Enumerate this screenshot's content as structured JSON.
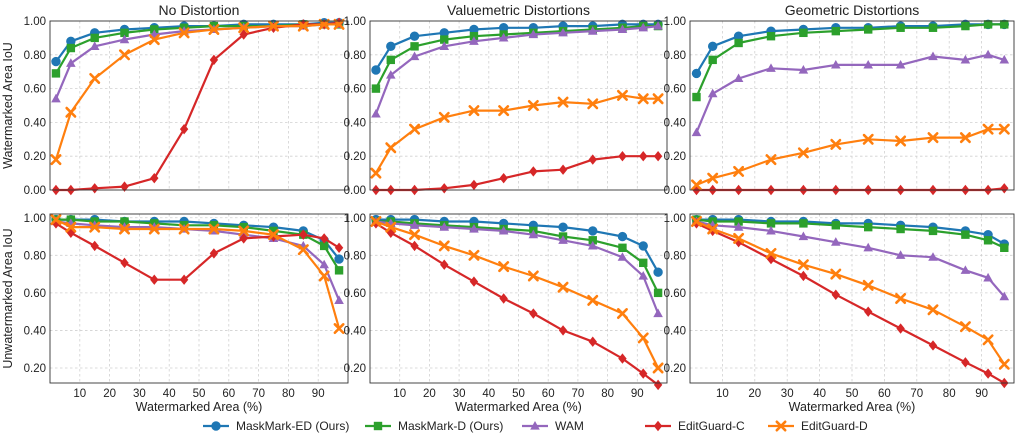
{
  "figure": {
    "legend_position": "bottom-center",
    "grid": true,
    "x_axis_label": "Watermarked Area (%)"
  },
  "series_styles": [
    {
      "name": "MaskMark-ED (Ours)",
      "color": "#1f77b4",
      "marker": "circle"
    },
    {
      "name": "MaskMark-D (Ours)",
      "color": "#2ca02c",
      "marker": "square"
    },
    {
      "name": "WAM",
      "color": "#9467bd",
      "marker": "triangle"
    },
    {
      "name": "EditGuard-C",
      "color": "#d62728",
      "marker": "diamond"
    },
    {
      "name": "EditGuard-D",
      "color": "#ff7f0e",
      "marker": "x"
    }
  ],
  "chart_data": [
    {
      "type": "line",
      "title": "No Distortion",
      "xlabel": "",
      "ylabel": "Watermarked Area IoU",
      "row": 0,
      "col": 0,
      "ylim": [
        0,
        1
      ],
      "yticks": [
        "0.00",
        "0.20",
        "0.40",
        "0.60",
        "0.80",
        "1.00"
      ],
      "xlim": [
        0,
        100
      ],
      "xticks": [],
      "x": [
        2,
        7,
        15,
        25,
        35,
        45,
        55,
        65,
        75,
        85,
        92,
        97
      ],
      "series": [
        {
          "name": "MaskMark-ED (Ours)",
          "values": [
            0.76,
            0.88,
            0.93,
            0.95,
            0.96,
            0.97,
            0.97,
            0.98,
            0.98,
            0.98,
            0.99,
            0.99
          ]
        },
        {
          "name": "MaskMark-D (Ours)",
          "values": [
            0.69,
            0.84,
            0.9,
            0.93,
            0.95,
            0.96,
            0.97,
            0.97,
            0.97,
            0.98,
            0.98,
            0.98
          ]
        },
        {
          "name": "WAM",
          "values": [
            0.54,
            0.75,
            0.85,
            0.89,
            0.92,
            0.94,
            0.95,
            0.96,
            0.97,
            0.97,
            0.98,
            0.98
          ]
        },
        {
          "name": "EditGuard-C",
          "values": [
            0.0,
            0.0,
            0.01,
            0.02,
            0.07,
            0.36,
            0.77,
            0.92,
            0.96,
            0.98,
            0.98,
            0.99
          ]
        },
        {
          "name": "EditGuard-D",
          "values": [
            0.18,
            0.46,
            0.66,
            0.8,
            0.89,
            0.93,
            0.95,
            0.96,
            0.97,
            0.97,
            0.98,
            0.98
          ]
        }
      ]
    },
    {
      "type": "line",
      "title": "Valuemetric Distortions",
      "xlabel": "",
      "ylabel": "",
      "row": 0,
      "col": 1,
      "ylim": [
        0,
        1
      ],
      "yticks": [
        "0.00",
        "0.20",
        "0.40",
        "0.60",
        "0.80",
        "1.00"
      ],
      "xlim": [
        0,
        100
      ],
      "xticks": [],
      "x": [
        2,
        7,
        15,
        25,
        35,
        45,
        55,
        65,
        75,
        85,
        92,
        97
      ],
      "series": [
        {
          "name": "MaskMark-ED (Ours)",
          "values": [
            0.71,
            0.85,
            0.91,
            0.93,
            0.95,
            0.96,
            0.96,
            0.97,
            0.97,
            0.98,
            0.98,
            0.98
          ]
        },
        {
          "name": "MaskMark-D (Ours)",
          "values": [
            0.6,
            0.77,
            0.85,
            0.89,
            0.91,
            0.92,
            0.93,
            0.94,
            0.95,
            0.96,
            0.97,
            0.97
          ]
        },
        {
          "name": "WAM",
          "values": [
            0.45,
            0.68,
            0.79,
            0.85,
            0.88,
            0.9,
            0.92,
            0.93,
            0.94,
            0.95,
            0.96,
            0.97
          ]
        },
        {
          "name": "EditGuard-C",
          "values": [
            0.0,
            0.0,
            0.0,
            0.01,
            0.03,
            0.07,
            0.11,
            0.12,
            0.18,
            0.2,
            0.2,
            0.2
          ]
        },
        {
          "name": "EditGuard-D",
          "values": [
            0.1,
            0.25,
            0.36,
            0.43,
            0.47,
            0.47,
            0.5,
            0.52,
            0.51,
            0.56,
            0.54,
            0.54
          ]
        }
      ]
    },
    {
      "type": "line",
      "title": "Geometric Distortions",
      "xlabel": "",
      "ylabel": "",
      "row": 0,
      "col": 2,
      "ylim": [
        0,
        1
      ],
      "yticks": [
        "0.00",
        "0.20",
        "0.40",
        "0.60",
        "0.80",
        "1.00"
      ],
      "xlim": [
        0,
        100
      ],
      "xticks": [],
      "x": [
        2,
        7,
        15,
        25,
        35,
        45,
        55,
        65,
        75,
        85,
        92,
        97
      ],
      "series": [
        {
          "name": "MaskMark-ED (Ours)",
          "values": [
            0.69,
            0.85,
            0.91,
            0.94,
            0.95,
            0.96,
            0.96,
            0.97,
            0.97,
            0.98,
            0.98,
            0.98
          ]
        },
        {
          "name": "MaskMark-D (Ours)",
          "values": [
            0.55,
            0.77,
            0.87,
            0.91,
            0.93,
            0.94,
            0.95,
            0.96,
            0.96,
            0.97,
            0.98,
            0.98
          ]
        },
        {
          "name": "WAM",
          "values": [
            0.34,
            0.57,
            0.66,
            0.72,
            0.71,
            0.74,
            0.74,
            0.74,
            0.79,
            0.77,
            0.8,
            0.77
          ]
        },
        {
          "name": "EditGuard-C",
          "values": [
            0.0,
            0.0,
            0.0,
            0.0,
            0.0,
            0.0,
            0.0,
            0.0,
            0.0,
            0.0,
            0.0,
            0.01
          ]
        },
        {
          "name": "EditGuard-D",
          "values": [
            0.03,
            0.07,
            0.11,
            0.18,
            0.22,
            0.27,
            0.3,
            0.29,
            0.31,
            0.31,
            0.36,
            0.36
          ]
        }
      ]
    },
    {
      "type": "line",
      "title": "",
      "xlabel": "Watermarked Area (%)",
      "ylabel": "Unwatermarked Area IoU",
      "row": 1,
      "col": 0,
      "ylim": [
        0.12,
        1.02
      ],
      "yticks": [
        "0.20",
        "0.40",
        "0.60",
        "0.80",
        "1.00"
      ],
      "xlim": [
        0,
        100
      ],
      "xticks": [
        "10",
        "20",
        "30",
        "40",
        "50",
        "60",
        "70",
        "80",
        "90"
      ],
      "x": [
        2,
        7,
        15,
        25,
        35,
        45,
        55,
        65,
        75,
        85,
        92,
        97
      ],
      "series": [
        {
          "name": "MaskMark-ED (Ours)",
          "values": [
            0.99,
            0.99,
            0.99,
            0.98,
            0.98,
            0.98,
            0.97,
            0.96,
            0.95,
            0.93,
            0.88,
            0.78
          ]
        },
        {
          "name": "MaskMark-D (Ours)",
          "values": [
            0.99,
            0.99,
            0.98,
            0.98,
            0.97,
            0.96,
            0.96,
            0.95,
            0.93,
            0.91,
            0.85,
            0.72
          ]
        },
        {
          "name": "WAM",
          "values": [
            0.98,
            0.97,
            0.96,
            0.95,
            0.95,
            0.94,
            0.93,
            0.91,
            0.89,
            0.85,
            0.75,
            0.56
          ]
        },
        {
          "name": "EditGuard-C",
          "values": [
            0.97,
            0.92,
            0.85,
            0.76,
            0.67,
            0.67,
            0.81,
            0.89,
            0.9,
            0.91,
            0.89,
            0.84
          ]
        },
        {
          "name": "EditGuard-D",
          "values": [
            0.99,
            0.95,
            0.95,
            0.94,
            0.94,
            0.94,
            0.94,
            0.93,
            0.91,
            0.83,
            0.69,
            0.41
          ]
        }
      ]
    },
    {
      "type": "line",
      "title": "",
      "xlabel": "Watermarked Area (%)",
      "ylabel": "",
      "row": 1,
      "col": 1,
      "ylim": [
        0.12,
        1.02
      ],
      "yticks": [
        "0.20",
        "0.40",
        "0.60",
        "0.80",
        "1.00"
      ],
      "xlim": [
        0,
        100
      ],
      "xticks": [
        "10",
        "20",
        "30",
        "40",
        "50",
        "60",
        "70",
        "80",
        "90"
      ],
      "x": [
        2,
        7,
        15,
        25,
        35,
        45,
        55,
        65,
        75,
        85,
        92,
        97
      ],
      "series": [
        {
          "name": "MaskMark-ED (Ours)",
          "values": [
            0.99,
            0.99,
            0.99,
            0.98,
            0.98,
            0.97,
            0.96,
            0.95,
            0.93,
            0.9,
            0.85,
            0.71
          ]
        },
        {
          "name": "MaskMark-D (Ours)",
          "values": [
            0.98,
            0.98,
            0.97,
            0.96,
            0.95,
            0.94,
            0.93,
            0.9,
            0.88,
            0.84,
            0.76,
            0.6
          ]
        },
        {
          "name": "WAM",
          "values": [
            0.98,
            0.97,
            0.96,
            0.95,
            0.94,
            0.93,
            0.91,
            0.88,
            0.85,
            0.79,
            0.69,
            0.49
          ]
        },
        {
          "name": "EditGuard-C",
          "values": [
            0.97,
            0.92,
            0.85,
            0.75,
            0.66,
            0.57,
            0.49,
            0.4,
            0.34,
            0.25,
            0.17,
            0.11
          ]
        },
        {
          "name": "EditGuard-D",
          "values": [
            0.98,
            0.95,
            0.91,
            0.85,
            0.8,
            0.74,
            0.69,
            0.63,
            0.56,
            0.49,
            0.36,
            0.2
          ]
        }
      ]
    },
    {
      "type": "line",
      "title": "",
      "xlabel": "Watermarked Area (%)",
      "ylabel": "",
      "row": 1,
      "col": 2,
      "ylim": [
        0.12,
        1.02
      ],
      "yticks": [
        "0.20",
        "0.40",
        "0.60",
        "0.80",
        "1.00"
      ],
      "xlim": [
        0,
        100
      ],
      "xticks": [
        "10",
        "20",
        "30",
        "40",
        "50",
        "60",
        "70",
        "80",
        "90"
      ],
      "x": [
        2,
        7,
        15,
        25,
        35,
        45,
        55,
        65,
        75,
        85,
        92,
        97
      ],
      "series": [
        {
          "name": "MaskMark-ED (Ours)",
          "values": [
            0.99,
            0.99,
            0.99,
            0.98,
            0.98,
            0.97,
            0.97,
            0.96,
            0.95,
            0.93,
            0.91,
            0.86
          ]
        },
        {
          "name": "MaskMark-D (Ours)",
          "values": [
            0.99,
            0.98,
            0.98,
            0.97,
            0.97,
            0.96,
            0.95,
            0.94,
            0.93,
            0.91,
            0.88,
            0.84
          ]
        },
        {
          "name": "WAM",
          "values": [
            0.98,
            0.96,
            0.95,
            0.93,
            0.9,
            0.87,
            0.84,
            0.8,
            0.79,
            0.72,
            0.68,
            0.58
          ]
        },
        {
          "name": "EditGuard-C",
          "values": [
            0.97,
            0.93,
            0.87,
            0.78,
            0.69,
            0.59,
            0.5,
            0.41,
            0.32,
            0.23,
            0.17,
            0.12
          ]
        },
        {
          "name": "EditGuard-D",
          "values": [
            0.98,
            0.94,
            0.89,
            0.81,
            0.75,
            0.7,
            0.64,
            0.57,
            0.51,
            0.42,
            0.35,
            0.22
          ]
        }
      ]
    }
  ]
}
